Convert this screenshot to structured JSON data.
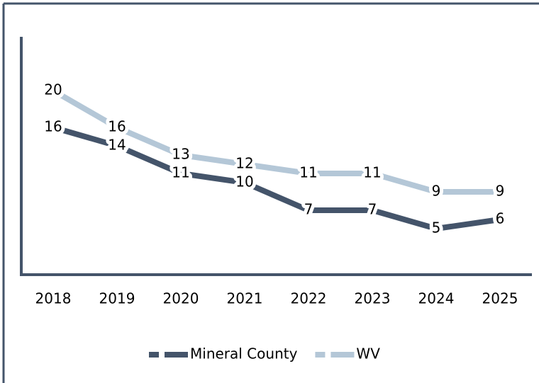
{
  "chart_data": {
    "type": "line",
    "categories": [
      "2018",
      "2019",
      "2020",
      "2021",
      "2022",
      "2023",
      "2024",
      "2025"
    ],
    "series": [
      {
        "name": "Mineral County",
        "color": "#44546a",
        "values": [
          16,
          14,
          11,
          10,
          7,
          7,
          5,
          6
        ]
      },
      {
        "name": "WV",
        "color": "#b4c7d7",
        "values": [
          20,
          16,
          13,
          12,
          11,
          11,
          9,
          9
        ]
      }
    ],
    "ylim": [
      0,
      26
    ],
    "legend": "bottom"
  }
}
